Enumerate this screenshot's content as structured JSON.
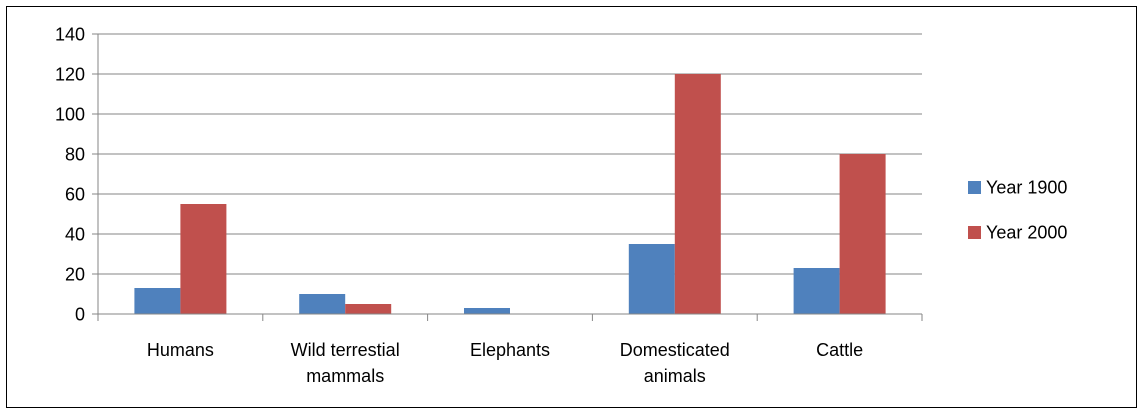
{
  "chart_data": {
    "type": "bar",
    "title": "",
    "xlabel": "",
    "ylabel": "",
    "categories": [
      [
        "Humans"
      ],
      [
        "Wild terrestial",
        "mammals"
      ],
      [
        "Elephants"
      ],
      [
        "Domesticated",
        "animals"
      ],
      [
        "Cattle"
      ]
    ],
    "series": [
      {
        "name": "Year 1900",
        "color": "#4F81BD",
        "values": [
          13,
          10,
          3,
          35,
          23
        ]
      },
      {
        "name": "Year 2000",
        "color": "#C0504D",
        "values": [
          55,
          5,
          0,
          120,
          80
        ]
      }
    ],
    "ylim": [
      0,
      140
    ],
    "yticks": [
      0,
      20,
      40,
      60,
      80,
      100,
      120,
      140
    ],
    "grid": true,
    "legend": "right"
  }
}
